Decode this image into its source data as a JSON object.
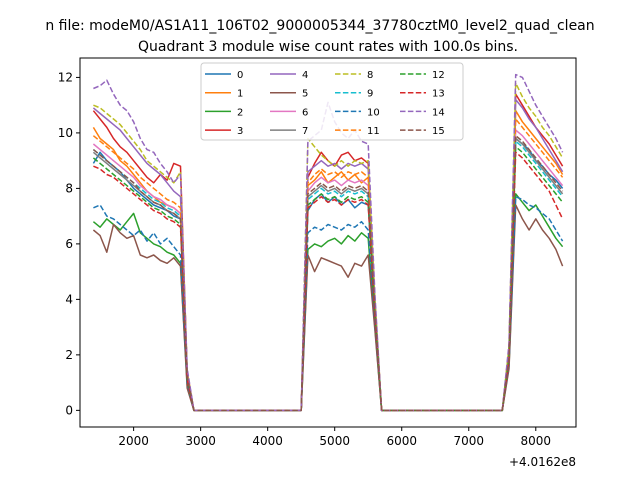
{
  "figure": {
    "suptitle": "n file: modeM0/AS1A11_106T02_9000005344_37780cztM0_level2_quad_clean"
  },
  "chart_data": {
    "type": "line",
    "title": "Quadrant 3 module wise count rates with 100.0s bins.",
    "xlabel": "",
    "ylabel": "",
    "x_offset_label": "+4.0162e8",
    "xlim": [
      1200,
      8600
    ],
    "ylim": [
      -0.6,
      12.7
    ],
    "xticks": [
      2000,
      3000,
      4000,
      5000,
      6000,
      7000,
      8000
    ],
    "yticks": [
      0,
      2,
      4,
      6,
      8,
      10,
      12
    ],
    "grid": false,
    "legend": {
      "placement": "top-center",
      "columns": 4
    },
    "x": [
      1400,
      1500,
      1600,
      1700,
      1800,
      1900,
      2000,
      2100,
      2200,
      2300,
      2400,
      2500,
      2600,
      2700,
      2800,
      2900,
      3000,
      3100,
      3200,
      3300,
      3400,
      3500,
      3600,
      3700,
      3800,
      3900,
      4000,
      4100,
      4200,
      4300,
      4400,
      4500,
      4600,
      4700,
      4800,
      4900,
      5000,
      5100,
      5200,
      5300,
      5400,
      5500,
      5600,
      5700,
      5800,
      5900,
      6000,
      6100,
      6200,
      6300,
      6400,
      6500,
      6600,
      6700,
      6800,
      6900,
      7000,
      7100,
      7200,
      7300,
      7400,
      7500,
      7600,
      7700,
      7800,
      7900,
      8000,
      8100,
      8200,
      8300,
      8400
    ],
    "gaps": [
      [
        2700,
        2800
      ],
      [
        2800,
        2900
      ],
      [
        4500,
        4600
      ],
      [
        5600,
        5700
      ],
      [
        5700,
        5800
      ],
      [
        7500,
        7600
      ],
      [
        7600,
        7700
      ]
    ],
    "series": [
      {
        "name": "0",
        "color": "#1f77b4",
        "dash": false,
        "values": [
          8.9,
          9.3,
          9.0,
          8.8,
          8.6,
          8.3,
          8.0,
          7.8,
          7.6,
          7.4,
          7.3,
          7.2,
          7.0,
          6.9,
          1.2,
          0,
          0,
          0,
          0,
          0,
          0,
          0,
          0,
          0,
          0,
          0,
          0,
          0,
          0,
          0,
          0,
          0,
          7.2,
          7.6,
          7.8,
          7.5,
          7.7,
          7.4,
          7.6,
          7.3,
          7.5,
          7.4,
          3.5,
          0,
          0,
          0,
          0,
          0,
          0,
          0,
          0,
          0,
          0,
          0,
          0,
          0,
          0,
          0,
          0,
          0,
          0,
          0,
          2.0,
          9.8,
          9.6,
          9.4,
          9.0,
          8.8,
          8.5,
          8.3,
          8.0
        ]
      },
      {
        "name": "1",
        "color": "#ff7f0e",
        "dash": false,
        "values": [
          10.2,
          9.8,
          9.6,
          9.4,
          9.0,
          8.8,
          8.5,
          8.2,
          7.9,
          7.7,
          7.5,
          7.4,
          7.3,
          7.1,
          1.3,
          0,
          0,
          0,
          0,
          0,
          0,
          0,
          0,
          0,
          0,
          0,
          0,
          0,
          0,
          0,
          0,
          0,
          8.1,
          8.3,
          8.6,
          8.2,
          8.4,
          8.6,
          8.3,
          8.5,
          8.2,
          8.4,
          3.8,
          0,
          0,
          0,
          0,
          0,
          0,
          0,
          0,
          0,
          0,
          0,
          0,
          0,
          0,
          0,
          0,
          0,
          0,
          0,
          2.1,
          10.8,
          10.4,
          10.1,
          9.8,
          9.5,
          9.2,
          8.9,
          8.5
        ]
      },
      {
        "name": "2",
        "color": "#2ca02c",
        "dash": false,
        "values": [
          6.8,
          6.6,
          6.9,
          6.7,
          6.5,
          6.8,
          7.1,
          6.4,
          6.2,
          6.0,
          5.9,
          5.7,
          5.6,
          5.3,
          0.9,
          0,
          0,
          0,
          0,
          0,
          0,
          0,
          0,
          0,
          0,
          0,
          0,
          0,
          0,
          0,
          0,
          0,
          5.8,
          6.0,
          5.9,
          6.1,
          6.2,
          6.0,
          6.3,
          6.1,
          6.4,
          6.2,
          3.0,
          0,
          0,
          0,
          0,
          0,
          0,
          0,
          0,
          0,
          0,
          0,
          0,
          0,
          0,
          0,
          0,
          0,
          0,
          0,
          1.6,
          7.8,
          7.5,
          7.2,
          7.4,
          7.0,
          6.6,
          6.2,
          5.9
        ]
      },
      {
        "name": "3",
        "color": "#d62728",
        "dash": false,
        "values": [
          10.8,
          10.5,
          10.2,
          9.8,
          9.5,
          9.3,
          9.0,
          8.7,
          8.4,
          8.2,
          8.5,
          8.3,
          8.9,
          8.8,
          1.4,
          0,
          0,
          0,
          0,
          0,
          0,
          0,
          0,
          0,
          0,
          0,
          0,
          0,
          0,
          0,
          0,
          0,
          8.4,
          8.9,
          9.3,
          9.0,
          8.8,
          9.2,
          9.3,
          9.0,
          9.1,
          8.9,
          4.0,
          0,
          0,
          0,
          0,
          0,
          0,
          0,
          0,
          0,
          0,
          0,
          0,
          0,
          0,
          0,
          0,
          0,
          0,
          0,
          2.2,
          11.4,
          11.0,
          10.6,
          10.2,
          9.9,
          9.6,
          9.2,
          8.8
        ]
      },
      {
        "name": "4",
        "color": "#9467bd",
        "dash": false,
        "values": [
          10.9,
          10.7,
          10.5,
          10.3,
          10.1,
          9.8,
          9.5,
          9.2,
          8.9,
          8.7,
          8.5,
          8.2,
          7.9,
          7.7,
          1.3,
          0,
          0,
          0,
          0,
          0,
          0,
          0,
          0,
          0,
          0,
          0,
          0,
          0,
          0,
          0,
          0,
          0,
          8.6,
          8.8,
          9.0,
          8.8,
          8.9,
          8.7,
          8.9,
          8.8,
          8.9,
          8.7,
          3.9,
          0,
          0,
          0,
          0,
          0,
          0,
          0,
          0,
          0,
          0,
          0,
          0,
          0,
          0,
          0,
          0,
          0,
          0,
          0,
          2.2,
          11.2,
          10.9,
          10.5,
          10.2,
          9.8,
          9.4,
          9.0,
          8.6
        ]
      },
      {
        "name": "5",
        "color": "#8c564b",
        "dash": false,
        "values": [
          6.5,
          6.3,
          5.7,
          6.7,
          6.4,
          6.2,
          6.3,
          5.6,
          5.5,
          5.6,
          5.4,
          5.3,
          5.5,
          5.2,
          0.8,
          0,
          0,
          0,
          0,
          0,
          0,
          0,
          0,
          0,
          0,
          0,
          0,
          0,
          0,
          0,
          0,
          0,
          5.6,
          5.0,
          5.5,
          5.4,
          5.3,
          5.2,
          4.8,
          5.3,
          5.2,
          5.6,
          2.9,
          0,
          0,
          0,
          0,
          0,
          0,
          0,
          0,
          0,
          0,
          0,
          0,
          0,
          0,
          0,
          0,
          0,
          0,
          0,
          1.5,
          7.4,
          6.9,
          6.5,
          6.9,
          6.5,
          6.2,
          5.8,
          5.2
        ]
      },
      {
        "name": "6",
        "color": "#e377c2",
        "dash": false,
        "values": [
          9.6,
          9.4,
          9.2,
          9.0,
          8.8,
          8.6,
          8.4,
          8.1,
          7.9,
          7.7,
          7.6,
          7.4,
          7.3,
          7.1,
          1.2,
          0,
          0,
          0,
          0,
          0,
          0,
          0,
          0,
          0,
          0,
          0,
          0,
          0,
          0,
          0,
          0,
          0,
          7.9,
          8.2,
          8.4,
          8.2,
          8.3,
          8.1,
          8.3,
          8.2,
          8.3,
          8.1,
          3.7,
          0,
          0,
          0,
          0,
          0,
          0,
          0,
          0,
          0,
          0,
          0,
          0,
          0,
          0,
          0,
          0,
          0,
          0,
          0,
          2.0,
          10.1,
          9.9,
          9.6,
          9.3,
          9.0,
          8.7,
          8.4,
          8.1
        ]
      },
      {
        "name": "7",
        "color": "#7f7f7f",
        "dash": false,
        "values": [
          9.3,
          9.1,
          8.9,
          8.7,
          8.5,
          8.3,
          8.1,
          7.9,
          7.7,
          7.5,
          7.4,
          7.2,
          7.1,
          6.9,
          1.2,
          0,
          0,
          0,
          0,
          0,
          0,
          0,
          0,
          0,
          0,
          0,
          0,
          0,
          0,
          0,
          0,
          0,
          7.7,
          7.9,
          8.1,
          7.9,
          8.0,
          7.8,
          8.0,
          7.9,
          8.0,
          7.8,
          3.6,
          0,
          0,
          0,
          0,
          0,
          0,
          0,
          0,
          0,
          0,
          0,
          0,
          0,
          0,
          0,
          0,
          0,
          0,
          0,
          1.9,
          9.8,
          9.6,
          9.3,
          9.0,
          8.7,
          8.4,
          8.1,
          7.8
        ]
      },
      {
        "name": "8",
        "color": "#bcbd22",
        "dash": true,
        "values": [
          11.0,
          10.9,
          10.7,
          10.5,
          10.3,
          10.0,
          9.7,
          9.4,
          9.0,
          8.8,
          8.6,
          8.4,
          8.2,
          8.6,
          1.4,
          0,
          0,
          0,
          0,
          0,
          0,
          0,
          0,
          0,
          0,
          0,
          0,
          0,
          0,
          0,
          0,
          0,
          9.8,
          9.5,
          9.2,
          9.0,
          8.8,
          9.0,
          8.8,
          9.0,
          8.9,
          9.0,
          4.0,
          0,
          0,
          0,
          0,
          0,
          0,
          0,
          0,
          0,
          0,
          0,
          0,
          0,
          0,
          0,
          0,
          0,
          0,
          0,
          2.3,
          11.8,
          11.3,
          10.9,
          10.6,
          10.2,
          9.9,
          9.5,
          9.1
        ]
      },
      {
        "name": "9",
        "color": "#17becf",
        "dash": true,
        "values": [
          9.4,
          9.2,
          9.0,
          8.8,
          8.6,
          8.4,
          8.2,
          8.0,
          7.8,
          7.6,
          7.5,
          7.3,
          7.2,
          7.0,
          1.2,
          0,
          0,
          0,
          0,
          0,
          0,
          0,
          0,
          0,
          0,
          0,
          0,
          0,
          0,
          0,
          0,
          0,
          7.6,
          7.8,
          8.0,
          7.8,
          7.9,
          7.7,
          7.9,
          7.8,
          7.9,
          7.7,
          3.6,
          0,
          0,
          0,
          0,
          0,
          0,
          0,
          0,
          0,
          0,
          0,
          0,
          0,
          0,
          0,
          0,
          0,
          0,
          0,
          1.9,
          9.7,
          9.5,
          9.2,
          8.9,
          8.6,
          8.3,
          8.0,
          7.7
        ]
      },
      {
        "name": "10",
        "color": "#1f77b4",
        "dash": true,
        "values": [
          7.3,
          7.4,
          7.0,
          6.9,
          6.7,
          6.5,
          6.3,
          6.5,
          6.1,
          6.4,
          6.0,
          6.2,
          5.9,
          5.6,
          1.0,
          0,
          0,
          0,
          0,
          0,
          0,
          0,
          0,
          0,
          0,
          0,
          0,
          0,
          0,
          0,
          0,
          0,
          6.4,
          6.6,
          6.5,
          6.7,
          6.6,
          6.5,
          6.7,
          6.6,
          6.8,
          6.5,
          3.2,
          0,
          0,
          0,
          0,
          0,
          0,
          0,
          0,
          0,
          0,
          0,
          0,
          0,
          0,
          0,
          0,
          0,
          0,
          0,
          1.7,
          7.7,
          7.6,
          7.4,
          7.3,
          7.1,
          6.9,
          6.5,
          6.1
        ]
      },
      {
        "name": "11",
        "color": "#ff7f0e",
        "dash": true,
        "values": [
          9.9,
          9.7,
          9.5,
          9.3,
          9.1,
          8.9,
          8.7,
          8.4,
          8.2,
          8.0,
          7.8,
          7.6,
          7.5,
          7.3,
          1.3,
          0,
          0,
          0,
          0,
          0,
          0,
          0,
          0,
          0,
          0,
          0,
          0,
          0,
          0,
          0,
          0,
          0,
          8.2,
          8.5,
          8.7,
          8.5,
          8.6,
          8.4,
          8.6,
          8.5,
          8.6,
          8.4,
          3.8,
          0,
          0,
          0,
          0,
          0,
          0,
          0,
          0,
          0,
          0,
          0,
          0,
          0,
          0,
          0,
          0,
          0,
          0,
          0,
          2.1,
          10.5,
          10.2,
          9.9,
          9.6,
          9.3,
          9.0,
          8.7,
          8.4
        ]
      },
      {
        "name": "12",
        "color": "#2ca02c",
        "dash": true,
        "values": [
          9.1,
          8.9,
          8.7,
          8.5,
          8.3,
          8.1,
          7.9,
          7.7,
          7.5,
          7.3,
          7.2,
          7.0,
          6.9,
          6.7,
          1.1,
          0,
          0,
          0,
          0,
          0,
          0,
          0,
          0,
          0,
          0,
          0,
          0,
          0,
          0,
          0,
          0,
          0,
          7.4,
          7.6,
          7.8,
          7.6,
          7.7,
          7.5,
          7.7,
          7.6,
          7.7,
          7.5,
          3.5,
          0,
          0,
          0,
          0,
          0,
          0,
          0,
          0,
          0,
          0,
          0,
          0,
          0,
          0,
          0,
          0,
          0,
          0,
          0,
          1.9,
          9.5,
          9.3,
          9.0,
          8.7,
          8.4,
          8.1,
          7.8,
          7.5
        ]
      },
      {
        "name": "13",
        "color": "#d62728",
        "dash": true,
        "values": [
          8.8,
          8.7,
          8.5,
          8.4,
          8.2,
          8.0,
          7.8,
          7.6,
          7.4,
          7.2,
          7.1,
          6.9,
          6.8,
          6.6,
          1.1,
          0,
          0,
          0,
          0,
          0,
          0,
          0,
          0,
          0,
          0,
          0,
          0,
          0,
          0,
          0,
          0,
          0,
          7.3,
          7.5,
          7.7,
          7.5,
          7.6,
          7.4,
          7.6,
          7.5,
          7.6,
          7.4,
          3.4,
          0,
          0,
          0,
          0,
          0,
          0,
          0,
          0,
          0,
          0,
          0,
          0,
          0,
          0,
          0,
          0,
          0,
          0,
          0,
          1.8,
          9.3,
          9.1,
          8.8,
          8.5,
          8.2,
          7.9,
          7.4,
          6.9
        ]
      },
      {
        "name": "14",
        "color": "#9467bd",
        "dash": true,
        "values": [
          11.6,
          11.7,
          11.9,
          11.4,
          11.0,
          10.8,
          10.4,
          9.8,
          9.4,
          9.3,
          8.9,
          8.6,
          8.2,
          8.5,
          1.5,
          0,
          0,
          0,
          0,
          0,
          0,
          0,
          0,
          0,
          0,
          0,
          0,
          0,
          0,
          0,
          0,
          0,
          9.7,
          9.9,
          10.1,
          11.1,
          10.4,
          10.0,
          9.8,
          10.1,
          9.7,
          9.6,
          4.2,
          0,
          0,
          0,
          0,
          0,
          0,
          0,
          0,
          0,
          0,
          0,
          0,
          0,
          0,
          0,
          0,
          0,
          0,
          0,
          2.4,
          12.1,
          12.0,
          11.5,
          11.0,
          10.6,
          10.2,
          9.8,
          9.3
        ]
      },
      {
        "name": "15",
        "color": "#8c564b",
        "dash": true,
        "values": [
          9.4,
          9.2,
          9.0,
          8.8,
          8.6,
          8.4,
          8.2,
          7.9,
          7.7,
          7.5,
          7.4,
          7.2,
          7.1,
          6.9,
          1.2,
          0,
          0,
          0,
          0,
          0,
          0,
          0,
          0,
          0,
          0,
          0,
          0,
          0,
          0,
          0,
          0,
          0,
          7.8,
          8.0,
          8.2,
          8.0,
          8.1,
          7.9,
          8.1,
          8.0,
          8.1,
          7.9,
          3.6,
          0,
          0,
          0,
          0,
          0,
          0,
          0,
          0,
          0,
          0,
          0,
          0,
          0,
          0,
          0,
          0,
          0,
          0,
          0,
          1.9,
          9.9,
          9.7,
          9.4,
          9.1,
          8.8,
          8.5,
          8.2,
          7.9
        ]
      }
    ]
  }
}
